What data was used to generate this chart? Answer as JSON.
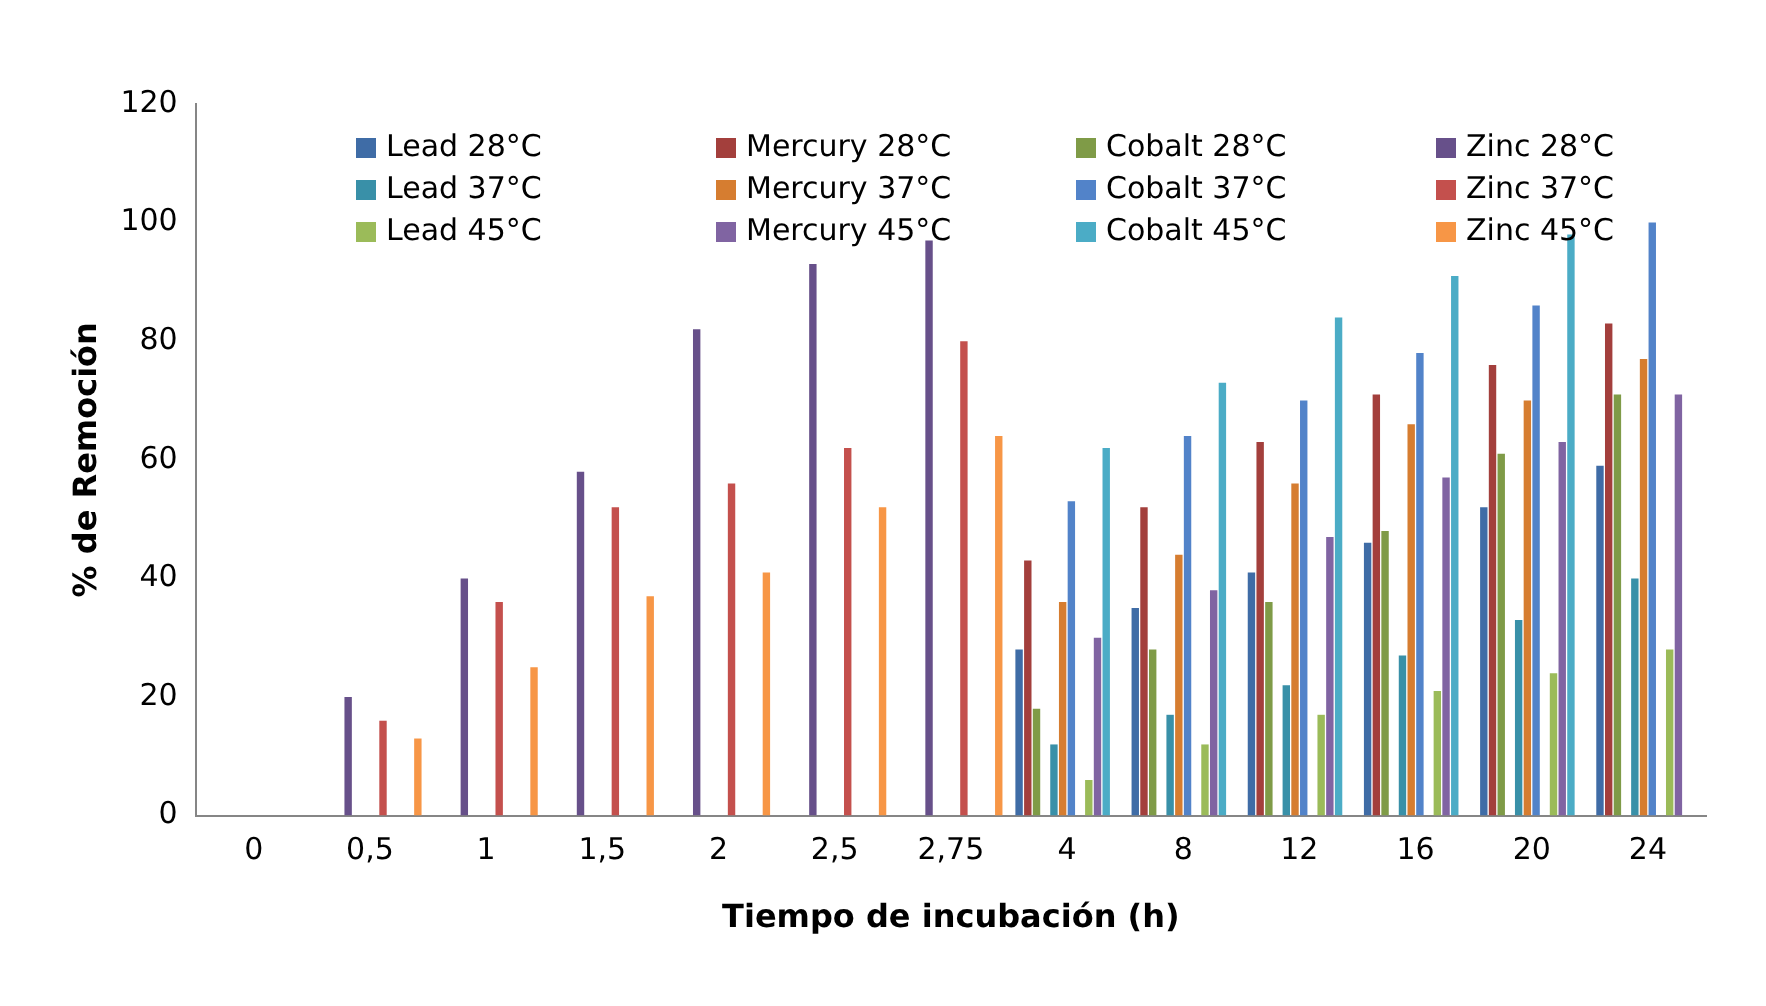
{
  "chart_data": {
    "type": "bar",
    "xlabel": "Tiempo de incubación (h)",
    "ylabel": "% de Remoción",
    "categories": [
      "0",
      "0,5",
      "1",
      "1,5",
      "2",
      "2,5",
      "2,75",
      "4",
      "8",
      "12",
      "16",
      "20",
      "24"
    ],
    "ylim": [
      0,
      120
    ],
    "yticks": [
      0,
      20,
      40,
      60,
      80,
      100,
      120
    ],
    "grid": false,
    "legend": "top",
    "series": [
      {
        "name": "Lead 28°C",
        "color": "#3f6ca6",
        "values": [
          null,
          null,
          null,
          null,
          null,
          null,
          null,
          28,
          35,
          41,
          46,
          52,
          59
        ]
      },
      {
        "name": "Mercury 28°C",
        "color": "#a33f3c",
        "values": [
          null,
          null,
          null,
          null,
          null,
          null,
          null,
          43,
          52,
          63,
          71,
          76,
          83
        ]
      },
      {
        "name": "Cobalt 28°C",
        "color": "#7f9b47",
        "values": [
          null,
          null,
          null,
          null,
          null,
          null,
          null,
          18,
          28,
          36,
          48,
          61,
          71
        ]
      },
      {
        "name": "Zinc 28°C",
        "color": "#67508a",
        "values": [
          0,
          20,
          40,
          58,
          82,
          93,
          97,
          null,
          null,
          null,
          null,
          null,
          null
        ]
      },
      {
        "name": "Lead 37°C",
        "color": "#3990a8",
        "values": [
          null,
          null,
          null,
          null,
          null,
          null,
          null,
          12,
          17,
          22,
          27,
          33,
          40
        ]
      },
      {
        "name": "Mercury 37°C",
        "color": "#d67d30",
        "values": [
          null,
          null,
          null,
          null,
          null,
          null,
          null,
          36,
          44,
          56,
          66,
          70,
          77
        ]
      },
      {
        "name": "Cobalt 37°C",
        "color": "#5283c9",
        "values": [
          null,
          null,
          null,
          null,
          null,
          null,
          null,
          53,
          64,
          70,
          78,
          86,
          100
        ]
      },
      {
        "name": "Zinc 37°C",
        "color": "#c4504d",
        "values": [
          0,
          16,
          36,
          52,
          56,
          62,
          80,
          null,
          null,
          null,
          null,
          null,
          null
        ]
      },
      {
        "name": "Lead 45°C",
        "color": "#9bbb59",
        "values": [
          null,
          null,
          null,
          null,
          null,
          null,
          null,
          6,
          12,
          17,
          21,
          24,
          28
        ]
      },
      {
        "name": "Mercury 45°C",
        "color": "#8064a2",
        "values": [
          null,
          null,
          null,
          null,
          null,
          null,
          null,
          30,
          38,
          47,
          57,
          63,
          71
        ]
      },
      {
        "name": "Cobalt 45°C",
        "color": "#4bacc6",
        "values": [
          null,
          null,
          null,
          null,
          null,
          null,
          null,
          62,
          73,
          84,
          91,
          98,
          null
        ]
      },
      {
        "name": "Zinc 45°C",
        "color": "#f79646",
        "values": [
          0,
          13,
          25,
          37,
          41,
          52,
          64,
          null,
          null,
          null,
          null,
          null,
          null
        ]
      }
    ]
  }
}
